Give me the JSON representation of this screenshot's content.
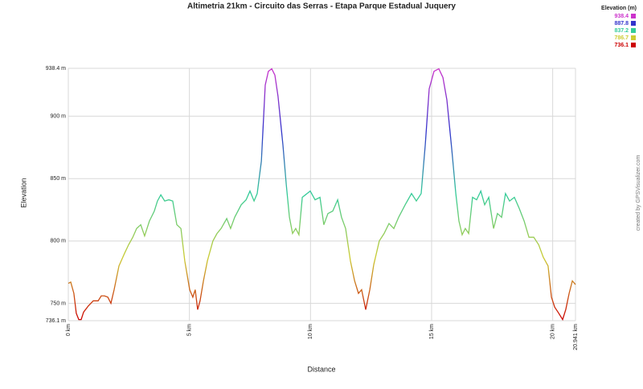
{
  "chart_data": {
    "type": "line",
    "title": "Altimetria 21km - Circuito das Serras - Etapa Parque Estadual Juquery",
    "x_label": "Distance",
    "y_label": "Elevation",
    "credit": "created by GPSVisualizer.com",
    "legend": {
      "title": "Elevation (m)",
      "entries": [
        {
          "value": 938.4,
          "color": "#cc33cc"
        },
        {
          "value": 887.8,
          "color": "#3333cc"
        },
        {
          "value": 837.2,
          "color": "#33cc99"
        },
        {
          "value": 786.7,
          "color": "#cccc33"
        },
        {
          "value": 736.1,
          "color": "#cc0000"
        }
      ]
    },
    "xlim": [
      0,
      20.941
    ],
    "ylim": [
      736.1,
      938.4
    ],
    "xticks": [
      {
        "value": 0,
        "label": "0 km"
      },
      {
        "value": 5,
        "label": "5 km"
      },
      {
        "value": 10,
        "label": "10 km"
      },
      {
        "value": 15,
        "label": "15 km"
      },
      {
        "value": 20,
        "label": "20 km"
      },
      {
        "value": 20.941,
        "label": "20.941 km"
      }
    ],
    "yticks": [
      {
        "value": 736.1,
        "label": "736.1 m"
      },
      {
        "value": 750,
        "label": "750 m"
      },
      {
        "value": 800,
        "label": "800 m"
      },
      {
        "value": 850,
        "label": "850 m"
      },
      {
        "value": 900,
        "label": "900 m"
      },
      {
        "value": 938.4,
        "label": "938.4 m"
      }
    ],
    "grid": true,
    "x": [
      0,
      0.1,
      0.23,
      0.33,
      0.43,
      0.53,
      0.63,
      0.83,
      1.03,
      1.23,
      1.36,
      1.49,
      1.63,
      1.76,
      1.89,
      2.09,
      2.32,
      2.49,
      2.66,
      2.82,
      2.99,
      3.15,
      3.35,
      3.55,
      3.68,
      3.82,
      3.98,
      4.15,
      4.31,
      4.48,
      4.65,
      4.81,
      5.01,
      5.14,
      5.24,
      5.34,
      5.44,
      5.58,
      5.74,
      5.97,
      6.14,
      6.31,
      6.54,
      6.7,
      6.87,
      7.14,
      7.34,
      7.5,
      7.67,
      7.8,
      7.97,
      8.13,
      8.26,
      8.4,
      8.53,
      8.66,
      8.86,
      9.0,
      9.13,
      9.26,
      9.39,
      9.52,
      9.66,
      9.86,
      9.99,
      10.19,
      10.39,
      10.55,
      10.72,
      10.92,
      11.12,
      11.28,
      11.45,
      11.65,
      11.82,
      11.98,
      12.11,
      12.28,
      12.45,
      12.61,
      12.84,
      13.04,
      13.24,
      13.44,
      13.64,
      13.91,
      14.17,
      14.37,
      14.57,
      14.74,
      14.9,
      15.1,
      15.3,
      15.47,
      15.63,
      15.83,
      16.0,
      16.13,
      16.26,
      16.39,
      16.53,
      16.69,
      16.86,
      17.03,
      17.19,
      17.36,
      17.56,
      17.72,
      17.89,
      18.05,
      18.22,
      18.42,
      18.62,
      18.82,
      19.02,
      19.22,
      19.42,
      19.61,
      19.81,
      19.95,
      20.08,
      20.25,
      20.41,
      20.54,
      20.68,
      20.81,
      20.94
    ],
    "values": [
      766,
      767,
      758,
      742,
      737,
      737,
      743,
      748,
      752,
      752,
      756,
      756,
      755,
      750,
      761,
      780,
      790,
      797,
      803,
      810,
      813,
      804,
      816,
      824,
      832,
      837,
      832,
      833,
      832,
      813,
      810,
      784,
      761,
      755,
      761,
      745,
      752,
      768,
      784,
      800,
      806,
      810,
      818,
      810,
      819,
      829,
      833,
      840,
      832,
      838,
      864,
      925,
      936,
      938,
      933,
      916,
      877,
      845,
      819,
      806,
      810,
      805,
      835,
      838,
      840,
      833,
      835,
      813,
      822,
      824,
      833,
      819,
      810,
      784,
      768,
      758,
      761,
      745,
      761,
      781,
      800,
      806,
      814,
      810,
      819,
      829,
      838,
      832,
      838,
      877,
      922,
      936,
      938,
      931,
      913,
      874,
      838,
      816,
      805,
      810,
      806,
      835,
      833,
      840,
      829,
      835,
      810,
      822,
      819,
      838,
      832,
      835,
      826,
      816,
      803,
      803,
      797,
      787,
      780,
      755,
      747,
      742,
      737,
      745,
      758,
      768,
      765
    ]
  }
}
